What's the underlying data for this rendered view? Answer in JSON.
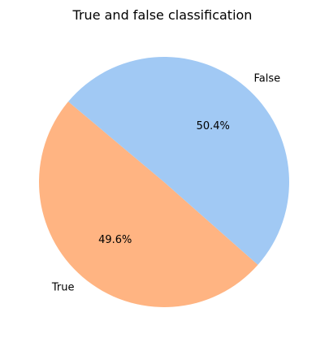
{
  "chart_data": {
    "type": "pie",
    "title": "True and false classification",
    "slices": [
      {
        "label": "True",
        "percent": 49.6,
        "percent_label": "49.6%",
        "color": "#ffb482"
      },
      {
        "label": "False",
        "percent": 50.4,
        "percent_label": "50.4%",
        "color": "#a1c9f4"
      }
    ],
    "start_angle_deg": 140,
    "counterclockwise": true
  }
}
